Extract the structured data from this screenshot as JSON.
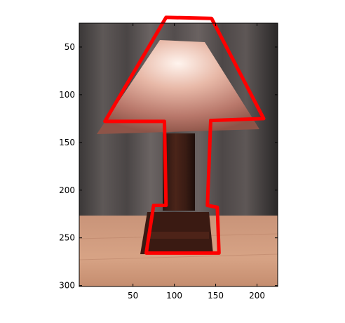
{
  "figure": {
    "image_subject": "table lamp",
    "outline_color": "#ff0000",
    "x_ticks": [
      50,
      100,
      150,
      200
    ],
    "y_ticks": [
      50,
      100,
      150,
      200,
      250,
      300
    ],
    "xlim": [
      -15,
      225
    ],
    "ylim": [
      25,
      301
    ],
    "y_axis_reversed": true,
    "outline_polygon": [
      [
        90,
        19
      ],
      [
        145,
        20
      ],
      [
        208,
        125
      ],
      [
        144,
        127
      ],
      [
        140,
        216
      ],
      [
        152,
        218
      ],
      [
        154,
        266
      ],
      [
        66,
        266
      ],
      [
        75,
        216
      ],
      [
        90,
        216
      ],
      [
        88,
        128
      ],
      [
        16,
        128
      ]
    ]
  }
}
